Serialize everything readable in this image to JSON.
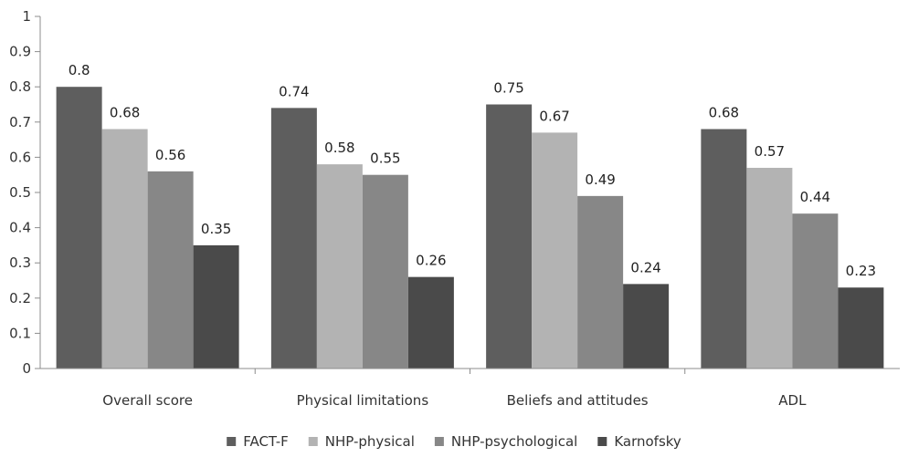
{
  "chart_data": {
    "type": "bar",
    "categories": [
      "Overall score",
      "Physical limitations",
      "Beliefs and attitudes",
      "ADL"
    ],
    "series": [
      {
        "name": "FACT-F",
        "values": [
          0.8,
          0.74,
          0.75,
          0.68
        ],
        "labels": [
          "0.8",
          "0.74",
          "0.75",
          "0.68"
        ],
        "color": "#5e5e5e"
      },
      {
        "name": "NHP-physical",
        "values": [
          0.68,
          0.58,
          0.67,
          0.57
        ],
        "labels": [
          "0.68",
          "0.58",
          "0.67",
          "0.57"
        ],
        "color": "#b3b3b3"
      },
      {
        "name": "NHP-psychological",
        "values": [
          0.56,
          0.55,
          0.49,
          0.44
        ],
        "labels": [
          "0.56",
          "0.55",
          "0.49",
          "0.44"
        ],
        "color": "#878787"
      },
      {
        "name": "Karnofsky",
        "values": [
          0.35,
          0.26,
          0.24,
          0.23
        ],
        "labels": [
          "0.35",
          "0.26",
          "0.24",
          "0.23"
        ],
        "color": "#4a4a4a"
      }
    ],
    "y_ticks": [
      "0",
      "0.1",
      "0.2",
      "0.3",
      "0.4",
      "0.5",
      "0.6",
      "0.7",
      "0.8",
      "0.9",
      "1"
    ],
    "ylim": [
      0,
      1
    ],
    "grid": false,
    "legend_position": "bottom",
    "xlabel": "",
    "ylabel": ""
  }
}
